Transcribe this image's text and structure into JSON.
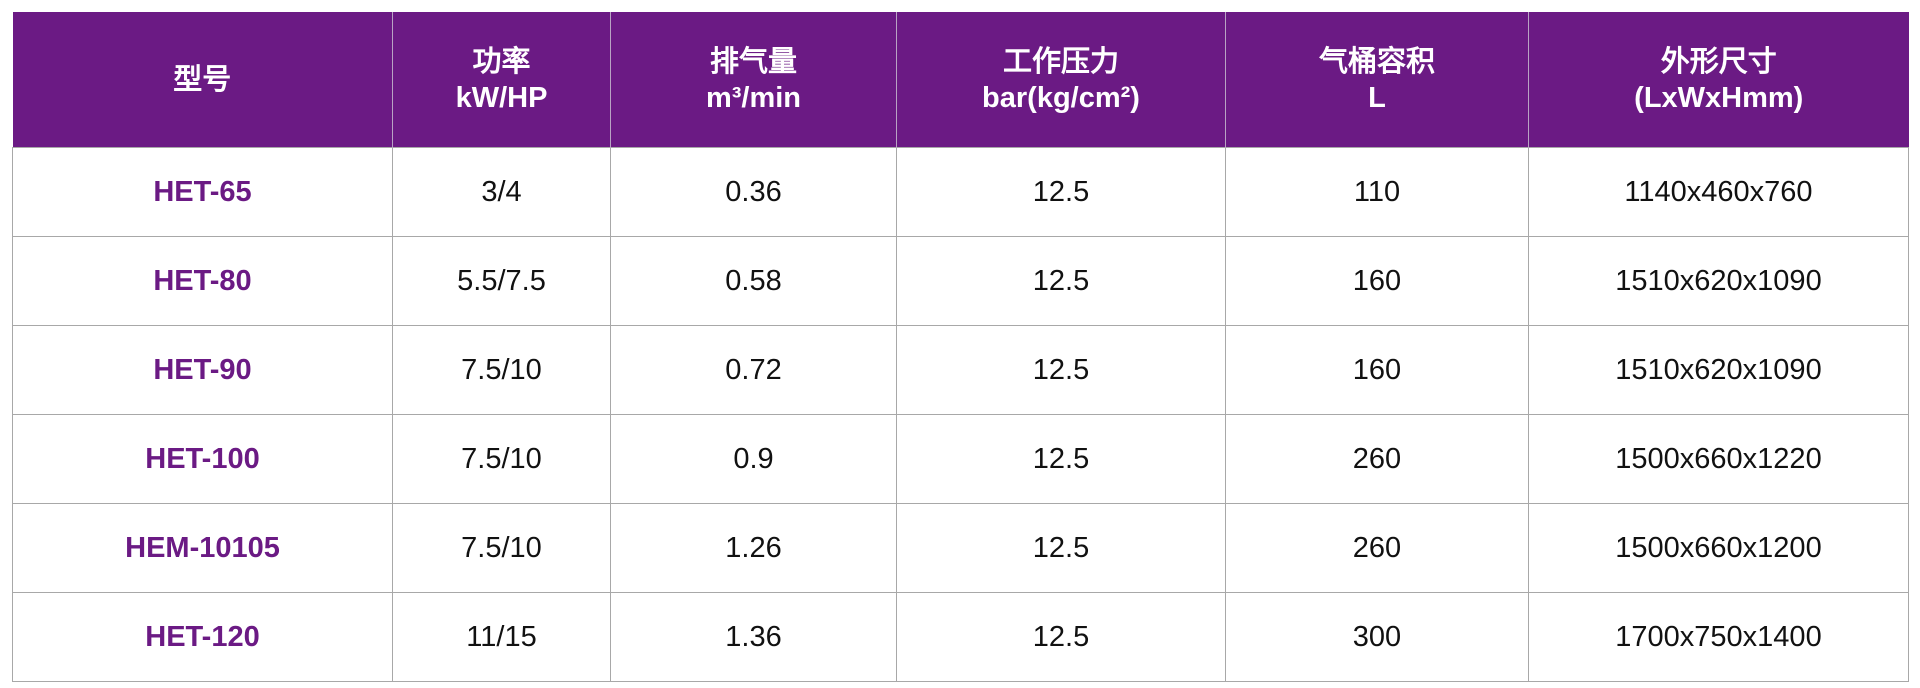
{
  "colors": {
    "header_bg": "#6b1a84",
    "model_text": "#6b1a84"
  },
  "headers": [
    {
      "line1": "型号",
      "line2": ""
    },
    {
      "line1": "功率",
      "line2": "kW/HP"
    },
    {
      "line1": "排气量",
      "line2": "m³/min"
    },
    {
      "line1": "工作压力",
      "line2": "bar(kg/cm²)"
    },
    {
      "line1": "气桶容积",
      "line2": "L"
    },
    {
      "line1": "外形尺寸",
      "line2": "(LxWxHmm)"
    }
  ],
  "rows": [
    [
      "HET-65",
      "3/4",
      "0.36",
      "12.5",
      "110",
      "1140x460x760"
    ],
    [
      "HET-80",
      "5.5/7.5",
      "0.58",
      "12.5",
      "160",
      "1510x620x1090"
    ],
    [
      "HET-90",
      "7.5/10",
      "0.72",
      "12.5",
      "160",
      "1510x620x1090"
    ],
    [
      "HET-100",
      "7.5/10",
      "0.9",
      "12.5",
      "260",
      "1500x660x1220"
    ],
    [
      "HEM-10105",
      "7.5/10",
      "1.26",
      "12.5",
      "260",
      "1500x660x1200"
    ],
    [
      "HET-120",
      "11/15",
      "1.36",
      "12.5",
      "300",
      "1700x750x1400"
    ]
  ]
}
